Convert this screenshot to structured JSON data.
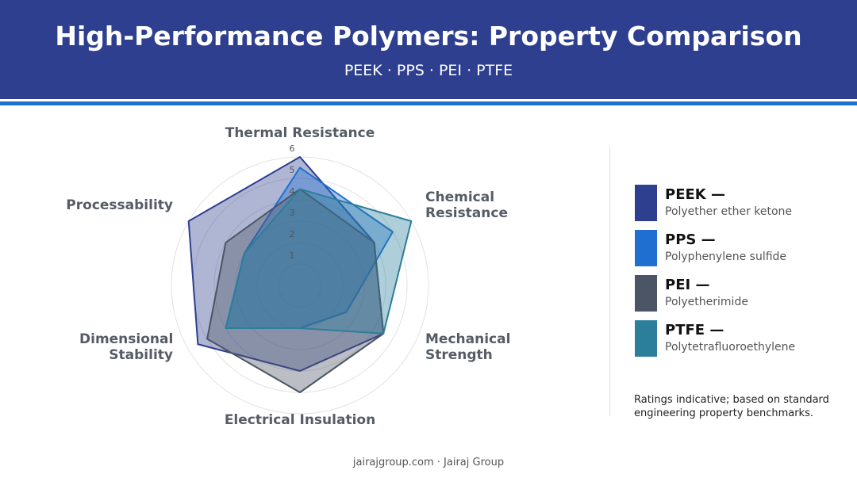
{
  "chart_data": {
    "type": "radar",
    "title": "High-Performance Polymers: Property Comparison",
    "subtitle": "PEEK · PPS · PEI · PTFE",
    "categories": [
      "Thermal Resistance",
      "Chemical Resistance",
      "Mechanical Strength",
      "Electrical Insulation",
      "Dimensional Stability",
      "Processability"
    ],
    "rlim": [
      0,
      6
    ],
    "rticks": [
      1,
      2,
      3,
      4,
      5,
      6
    ],
    "grid": true,
    "series": [
      {
        "name": "PEEK —",
        "description": "Polyether ether ketone",
        "color": "#2e3f8f",
        "values": [
          6,
          4,
          4.5,
          4,
          5.5,
          6
        ]
      },
      {
        "name": "PPS —",
        "description": "Polyphenylene sulfide",
        "color": "#1f6fd1",
        "values": [
          5.5,
          5,
          2.5,
          2,
          4,
          3
        ]
      },
      {
        "name": "PEI —",
        "description": "Polyetherimide",
        "color": "#4b5565",
        "values": [
          4.5,
          4,
          4.5,
          5,
          5,
          4
        ]
      },
      {
        "name": "PTFE —",
        "description": "Polytetrafluoroethylene",
        "color": "#2b7f9b",
        "values": [
          4.5,
          6,
          4.5,
          2,
          4,
          3
        ]
      }
    ],
    "note": "Ratings indicative; based on standard engineering property benchmarks.",
    "footer": "jairajgroup.com · Jairaj Group"
  }
}
